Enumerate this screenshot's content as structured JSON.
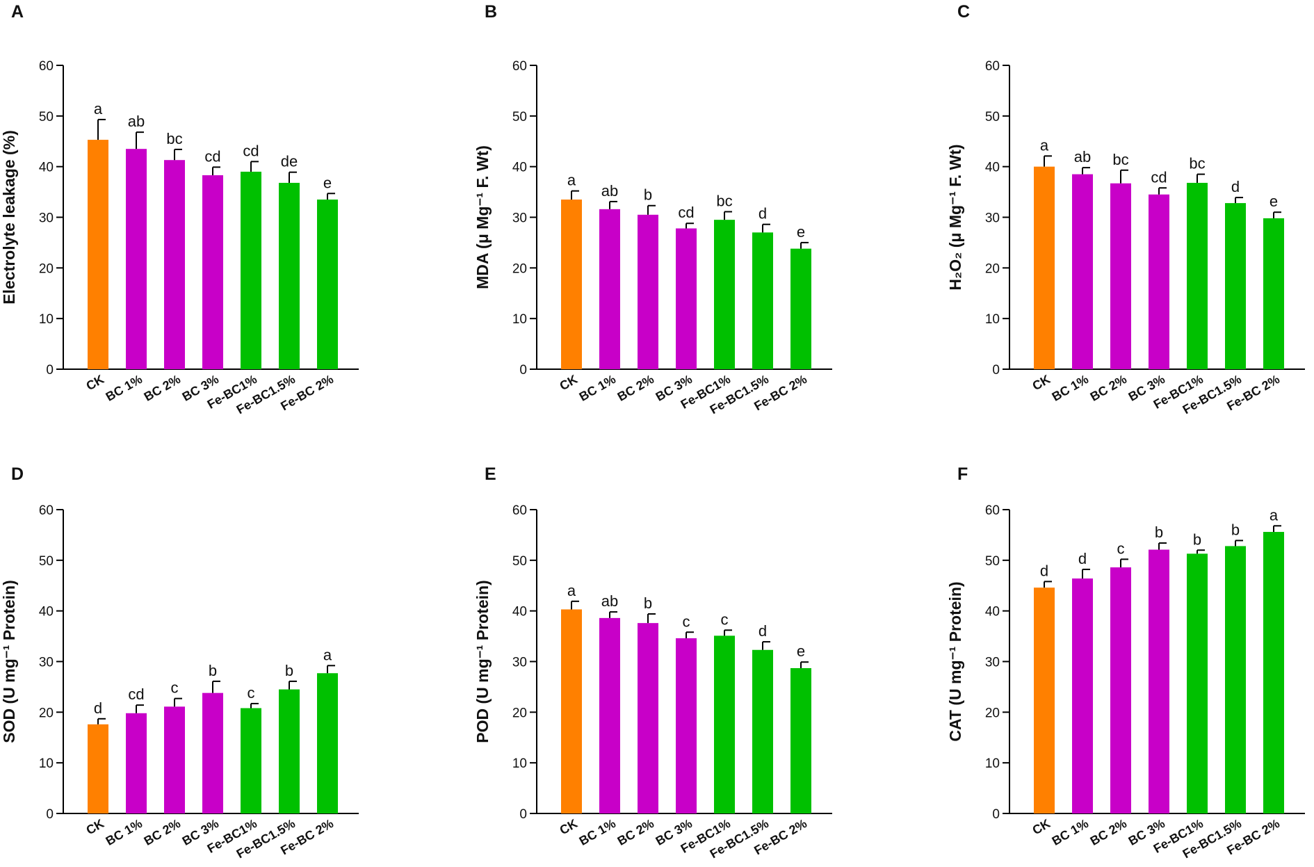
{
  "colors": {
    "ck": "#ff8000",
    "bc": "#c800c8",
    "febc": "#00c000",
    "axis": "#000000"
  },
  "chart_data": [
    {
      "panel": "A",
      "type": "bar",
      "ylabel": "Electrolyte leakage (%)",
      "ylim": [
        0,
        60
      ],
      "yticks": [
        "0",
        "10",
        "20",
        "30",
        "40",
        "50",
        "60"
      ],
      "categories": [
        "CK",
        "BC 1%",
        "BC 2%",
        "BC 3%",
        "Fe-BC1%",
        "Fe-BC1.5%",
        "Fe-BC 2%"
      ],
      "values": [
        45.3,
        43.5,
        41.3,
        38.3,
        39.0,
        36.8,
        33.5
      ],
      "errors": [
        4.0,
        3.3,
        2.1,
        1.6,
        2.0,
        2.1,
        1.2
      ],
      "significance": [
        "a",
        "ab",
        "bc",
        "cd",
        "cd",
        "de",
        "e"
      ]
    },
    {
      "panel": "B",
      "type": "bar",
      "ylabel": "MDA (μ Mg⁻¹ F. Wt)",
      "ylim": [
        0,
        60
      ],
      "yticks": [
        "0",
        "10",
        "20",
        "30",
        "40",
        "50",
        "60"
      ],
      "categories": [
        "CK",
        "BC 1%",
        "BC 2%",
        "BC 3%",
        "Fe-BC1%",
        "Fe-BC1.5%",
        "Fe-BC 2%"
      ],
      "values": [
        33.5,
        31.6,
        30.5,
        27.8,
        29.5,
        27.0,
        23.8
      ],
      "errors": [
        1.7,
        1.5,
        1.8,
        1.0,
        1.6,
        1.6,
        1.2
      ],
      "significance": [
        "a",
        "ab",
        "b",
        "cd",
        "bc",
        "d",
        "e"
      ]
    },
    {
      "panel": "C",
      "type": "bar",
      "ylabel": "H₂O₂ (μ Mg⁻¹ F. Wt)",
      "ylim": [
        0,
        60
      ],
      "yticks": [
        "0",
        "10",
        "20",
        "30",
        "40",
        "50",
        "60"
      ],
      "categories": [
        "CK",
        "BC 1%",
        "BC 2%",
        "BC 3%",
        "Fe-BC1%",
        "Fe-BC1.5%",
        "Fe-BC 2%"
      ],
      "values": [
        40.0,
        38.5,
        36.7,
        34.5,
        36.8,
        32.8,
        29.8
      ],
      "errors": [
        2.1,
        1.3,
        2.6,
        1.3,
        1.7,
        1.1,
        1.2
      ],
      "significance": [
        "a",
        "ab",
        "bc",
        "cd",
        "bc",
        "d",
        "e"
      ]
    },
    {
      "panel": "D",
      "type": "bar",
      "ylabel": "SOD (U mg⁻¹ Protein)",
      "ylim": [
        0,
        60
      ],
      "yticks": [
        "0",
        "10",
        "20",
        "30",
        "40",
        "50",
        "60"
      ],
      "categories": [
        "CK",
        "BC 1%",
        "BC 2%",
        "BC 3%",
        "Fe-BC1%",
        "Fe-BC1.5%",
        "Fe-BC 2%"
      ],
      "values": [
        17.6,
        19.8,
        21.1,
        23.8,
        20.8,
        24.5,
        27.7
      ],
      "errors": [
        1.1,
        1.6,
        1.6,
        2.3,
        0.9,
        1.6,
        1.5
      ],
      "significance": [
        "d",
        "cd",
        "c",
        "b",
        "c",
        "b",
        "a"
      ]
    },
    {
      "panel": "E",
      "type": "bar",
      "ylabel": "POD (U mg⁻¹ Protein)",
      "ylim": [
        0,
        60
      ],
      "yticks": [
        "0",
        "10",
        "20",
        "30",
        "40",
        "50",
        "60"
      ],
      "categories": [
        "CK",
        "BC 1%",
        "BC 2%",
        "BC 3%",
        "Fe-BC1%",
        "Fe-BC1.5%",
        "Fe-BC 2%"
      ],
      "values": [
        40.3,
        38.6,
        37.6,
        34.6,
        35.1,
        32.3,
        28.7
      ],
      "errors": [
        1.6,
        1.2,
        1.8,
        1.2,
        1.1,
        1.6,
        1.2
      ],
      "significance": [
        "a",
        "ab",
        "b",
        "c",
        "c",
        "d",
        "e"
      ]
    },
    {
      "panel": "F",
      "type": "bar",
      "ylabel": "CAT (U mg⁻¹ Protein)",
      "ylim": [
        0,
        60
      ],
      "yticks": [
        "0",
        "10",
        "20",
        "30",
        "40",
        "50",
        "60"
      ],
      "categories": [
        "CK",
        "BC 1%",
        "BC 2%",
        "BC 3%",
        "Fe-BC1%",
        "Fe-BC1.5%",
        "Fe-BC 2%"
      ],
      "values": [
        44.6,
        46.4,
        48.6,
        52.1,
        51.3,
        52.8,
        55.6
      ],
      "errors": [
        1.2,
        1.8,
        1.6,
        1.3,
        0.7,
        1.1,
        1.2
      ],
      "significance": [
        "d",
        "d",
        "c",
        "b",
        "b",
        "b",
        "a"
      ]
    }
  ]
}
